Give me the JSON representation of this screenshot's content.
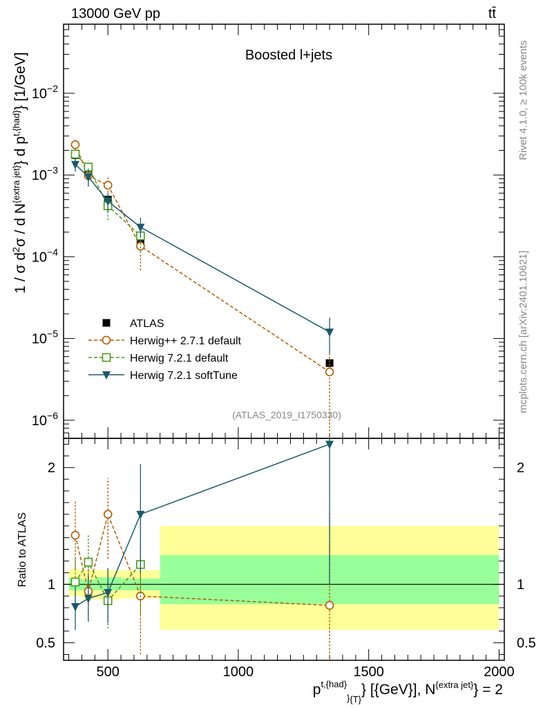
{
  "header": {
    "energy_label": "13000 GeV pp",
    "process_label": "tt̄"
  },
  "side_text": {
    "rivet": "Rivet 4.1.0, ≥ 100k events",
    "mcplots": "mcplots.cern.ch [arXiv:2401.10621]"
  },
  "chart_data": [
    {
      "panel": "main",
      "type": "scatter",
      "title": "Boosted l+jets",
      "watermark": "(ATLAS_2019_I1750330)",
      "ylabel": "1 / σ d²σ / d N^{extra jet} d p_T^{t,had} [1/GeV]",
      "yscale": "log",
      "ylim": [
        6e-07,
        0.07
      ],
      "xlim": [
        330,
        2020
      ],
      "y_ticks": [
        {
          "value": 1e-06,
          "base": "10",
          "exp": "−6"
        },
        {
          "value": 1e-05,
          "base": "10",
          "exp": "−5"
        },
        {
          "value": 0.0001,
          "base": "10",
          "exp": "−4"
        },
        {
          "value": 0.001,
          "base": "10",
          "exp": "−3"
        },
        {
          "value": 0.01,
          "base": "10",
          "exp": "−2"
        }
      ],
      "series": [
        {
          "name": "ATLAS",
          "style": "data",
          "color": "#000000",
          "x": [
            375,
            425,
            500,
            625,
            1350
          ],
          "y": [
            0.00175,
            0.00105,
            0.0005,
            0.000155,
            5e-06
          ]
        },
        {
          "name": "Herwig++ 2.7.1 default",
          "style": "open-circle-dashed",
          "color": "#b35900",
          "x": [
            375,
            425,
            500,
            625,
            1350
          ],
          "y": [
            0.00235,
            0.00098,
            0.00075,
            0.000135,
            3.9e-06
          ],
          "yerr_low": [
            0.0019,
            0.00075,
            0.00055,
            6.8e-05,
            1e-07
          ],
          "yerr_high": [
            0.0028,
            0.0012,
            0.00094,
            0.00019,
            6.5e-06
          ]
        },
        {
          "name": "Herwig 7.2.1 default",
          "style": "open-square-dashed",
          "color": "#4a9a1a",
          "x": [
            375,
            425,
            500,
            625,
            1350
          ],
          "y": [
            0.0018,
            0.00125,
            0.00042,
            0.00018,
            null
          ],
          "yerr_low": [
            0.0015,
            0.001,
            0.00028,
            0.000115,
            null
          ],
          "yerr_high": [
            0.0021,
            0.0015,
            0.00058,
            0.00024,
            null
          ]
        },
        {
          "name": "Herwig 7.2.1 softTune",
          "style": "filled-triangle-solid",
          "color": "#1a5a6a",
          "x": [
            375,
            425,
            500,
            625,
            1350
          ],
          "y": [
            0.00135,
            0.00095,
            0.00048,
            0.00023,
            1.2e-05
          ],
          "yerr_low": [
            0.0011,
            0.00072,
            0.00035,
            0.00017,
            6.5e-06
          ],
          "yerr_high": [
            0.0016,
            0.0012,
            0.0006,
            0.0003,
            1.8e-05
          ]
        }
      ]
    },
    {
      "panel": "ratio",
      "type": "scatter",
      "ylabel": "Ratio to ATLAS",
      "xlabel": "p_T^{t,{had}} [{GeV}], N^{extra jet} = 2",
      "ylim": [
        0.35,
        2.25
      ],
      "xlim": [
        330,
        2020
      ],
      "x_ticks": [
        500,
        1000,
        1500,
        2000
      ],
      "y_ticks": [
        0.5,
        1,
        2
      ],
      "bins": [
        {
          "xlo": 350,
          "xhi": 400,
          "green": [
            0.95,
            1.05
          ],
          "yellow": [
            0.9,
            1.13
          ]
        },
        {
          "xlo": 400,
          "xhi": 450,
          "green": [
            0.95,
            1.04
          ],
          "yellow": [
            0.87,
            1.12
          ]
        },
        {
          "xlo": 450,
          "xhi": 550,
          "green": [
            0.95,
            1.06
          ],
          "yellow": [
            0.87,
            1.12
          ]
        },
        {
          "xlo": 550,
          "xhi": 700,
          "green": [
            0.95,
            1.05
          ],
          "yellow": [
            0.88,
            1.12
          ]
        },
        {
          "xlo": 700,
          "xhi": 2000,
          "green": [
            0.83,
            1.25
          ],
          "yellow": [
            0.61,
            1.5
          ]
        }
      ],
      "series": [
        {
          "name": "Herwig++ 2.7.1 default",
          "color": "#b35900",
          "x": [
            375,
            425,
            500,
            625,
            1350
          ],
          "y": [
            1.42,
            0.94,
            1.6,
            0.9,
            0.82
          ],
          "yerr_low": [
            1.13,
            0.73,
            1.22,
            0.4,
            0.3
          ],
          "yerr_high": [
            1.72,
            1.16,
            1.91,
            1.25,
            1.63
          ]
        },
        {
          "name": "Herwig 7.2.1 default",
          "color": "#4a9a1a",
          "x": [
            375,
            425,
            500,
            625,
            1350
          ],
          "y": [
            1.02,
            1.19,
            0.86,
            1.17,
            null
          ],
          "yerr_low": [
            0.82,
            0.93,
            0.62,
            0.74,
            null
          ],
          "yerr_high": [
            1.23,
            1.42,
            1.1,
            1.58,
            null
          ]
        },
        {
          "name": "Herwig 7.2.1 softTune",
          "color": "#1a5a6a",
          "x": [
            375,
            425,
            500,
            625,
            1350
          ],
          "y": [
            0.81,
            0.88,
            0.93,
            1.6,
            2.2
          ],
          "yerr_low": [
            0.61,
            0.68,
            0.67,
            1.1,
            1.0
          ],
          "yerr_high": [
            0.98,
            1.08,
            1.14,
            2.03,
            2.5
          ]
        }
      ]
    }
  ]
}
